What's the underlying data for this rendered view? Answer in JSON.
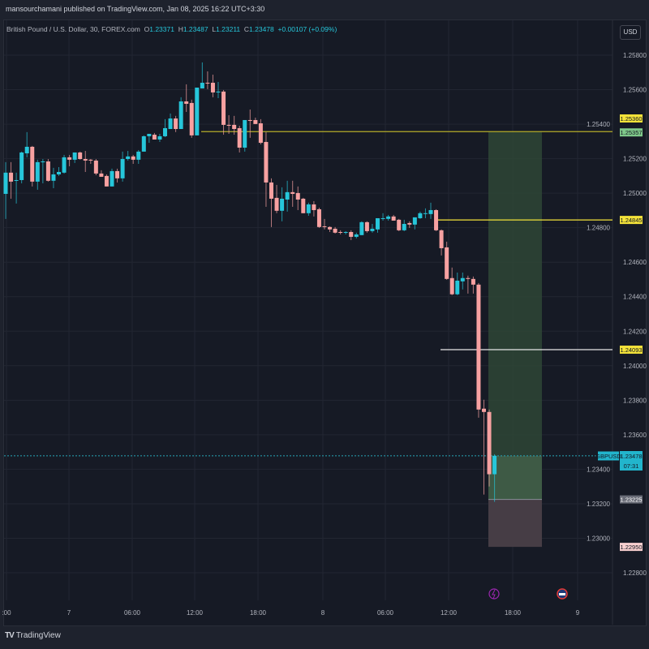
{
  "published_by": "mansourchamani published on TradingView.com, Jan 08, 2025 16:22 UTC+3:30",
  "symbol_title": "British Pound / U.S. Dollar, 30, FOREX.com",
  "ohlc": {
    "o_label": "O",
    "o": "1.23371",
    "h_label": "H",
    "h": "1.23487",
    "l_label": "L",
    "l": "1.23211",
    "c_label": "C",
    "c": "1.23478",
    "change": "+0.00107 (+0.09%)"
  },
  "currency_button": "USD",
  "footer_brand": "TradingView",
  "colors": {
    "up": "#26c6da",
    "down": "#f7a1a1",
    "bg": "#161a25",
    "grid": "#222632",
    "yellow": "#f3e23a",
    "profit": "#2e4636",
    "loss": "#463d45"
  },
  "chart_data": {
    "type": "candlestick",
    "ylim": [
      1.2272,
      1.2591
    ],
    "price_ticks": [
      "1.25800",
      "1.25600",
      "1.25400",
      "1.25200",
      "1.25000",
      "1.24800",
      "1.24600",
      "1.24400",
      "1.24200",
      "1.24000",
      "1.23800",
      "1.23600",
      "1.23400",
      "1.23200",
      "1.23000",
      "1.22800"
    ],
    "time_ticks": [
      ":00",
      "7",
      "06:00",
      "12:00",
      "18:00",
      "8",
      "06:00",
      "12:00",
      "18:00",
      "9"
    ],
    "candles": [
      [
        1.24996,
        1.2518,
        1.24851,
        1.25119
      ],
      [
        1.25119,
        1.2518,
        1.24968,
        1.25067
      ],
      [
        1.25072,
        1.25119,
        1.2494,
        1.25076
      ],
      [
        1.25076,
        1.25241,
        1.25057,
        1.25236
      ],
      [
        1.25231,
        1.25354,
        1.25208,
        1.25269
      ],
      [
        1.25269,
        1.25274,
        1.25039,
        1.25067
      ],
      [
        1.25067,
        1.25194,
        1.2502,
        1.2518
      ],
      [
        1.2518,
        1.25198,
        1.25057,
        1.25184
      ],
      [
        1.25184,
        1.25198,
        1.25067,
        1.25072
      ],
      [
        1.25072,
        1.25147,
        1.25029,
        1.25109
      ],
      [
        1.25109,
        1.25151,
        1.251,
        1.25123
      ],
      [
        1.25119,
        1.25222,
        1.25114,
        1.25208
      ],
      [
        1.25208,
        1.25222,
        1.25156,
        1.25194
      ],
      [
        1.25194,
        1.25236,
        1.25175,
        1.25236
      ],
      [
        1.25236,
        1.25241,
        1.25194,
        1.25198
      ],
      [
        1.25198,
        1.25245,
        1.25123,
        1.25189
      ],
      [
        1.25194,
        1.25198,
        1.2517,
        1.25189
      ],
      [
        1.25189,
        1.25198,
        1.25104,
        1.25114
      ],
      [
        1.25114,
        1.25133,
        1.25095,
        1.25095
      ],
      [
        1.251,
        1.25109,
        1.25039,
        1.25039
      ],
      [
        1.25039,
        1.25142,
        1.25039,
        1.25128
      ],
      [
        1.25128,
        1.25142,
        1.25062,
        1.25086
      ],
      [
        1.25086,
        1.25241,
        1.25067,
        1.25198
      ],
      [
        1.25198,
        1.25245,
        1.25189,
        1.25213
      ],
      [
        1.25213,
        1.25222,
        1.2517,
        1.25194
      ],
      [
        1.25194,
        1.2525,
        1.2517,
        1.25241
      ],
      [
        1.25241,
        1.25335,
        1.25241,
        1.2533
      ],
      [
        1.2533,
        1.25344,
        1.25292,
        1.25344
      ],
      [
        1.25339,
        1.25349,
        1.25311,
        1.25311
      ],
      [
        1.25311,
        1.25344,
        1.25297,
        1.2533
      ],
      [
        1.2533,
        1.25429,
        1.25325,
        1.25377
      ],
      [
        1.25372,
        1.25462,
        1.25372,
        1.25433
      ],
      [
        1.25433,
        1.25448,
        1.25354,
        1.25372
      ],
      [
        1.25372,
        1.25556,
        1.25372,
        1.25532
      ],
      [
        1.25532,
        1.25631,
        1.25471,
        1.25518
      ],
      [
        1.25523,
        1.25542,
        1.25321,
        1.25335
      ],
      [
        1.25335,
        1.25603,
        1.25335,
        1.25612
      ],
      [
        1.25607,
        1.25758,
        1.25607,
        1.2564
      ],
      [
        1.2564,
        1.25706,
        1.25603,
        1.25636
      ],
      [
        1.2564,
        1.25687,
        1.25556,
        1.25584
      ],
      [
        1.25584,
        1.25645,
        1.25551,
        1.25589
      ],
      [
        1.25589,
        1.25598,
        1.25339,
        1.25396
      ],
      [
        1.25396,
        1.25452,
        1.25344,
        1.25391
      ],
      [
        1.25396,
        1.25448,
        1.25339,
        1.25372
      ],
      [
        1.25377,
        1.25391,
        1.25236,
        1.25264
      ],
      [
        1.25264,
        1.25405,
        1.25241,
        1.25424
      ],
      [
        1.25424,
        1.25485,
        1.25321,
        1.25419
      ],
      [
        1.25424,
        1.25438,
        1.25401,
        1.25401
      ],
      [
        1.25405,
        1.25429,
        1.25283,
        1.25292
      ],
      [
        1.25297,
        1.25354,
        1.24921,
        1.25062
      ],
      [
        1.25062,
        1.25086,
        1.24804,
        1.24968
      ],
      [
        1.24973,
        1.25048,
        1.24884,
        1.24898
      ],
      [
        1.24898,
        1.25034,
        1.24837,
        1.24968
      ],
      [
        1.24963,
        1.25072,
        1.24893,
        1.25006
      ],
      [
        1.25006,
        1.25072,
        1.24921,
        1.24996
      ],
      [
        1.25001,
        1.25039,
        1.24902,
        1.24963
      ],
      [
        1.24968,
        1.24973,
        1.24884,
        1.24884
      ],
      [
        1.24884,
        1.24945,
        1.24869,
        1.24935
      ],
      [
        1.24935,
        1.24954,
        1.24865,
        1.24902
      ],
      [
        1.24907,
        1.24916,
        1.24799,
        1.24804
      ],
      [
        1.24808,
        1.24851,
        1.2479,
        1.24804
      ],
      [
        1.24804,
        1.24808,
        1.24775,
        1.2479
      ],
      [
        1.24794,
        1.24804,
        1.24766,
        1.24771
      ],
      [
        1.24775,
        1.24785,
        1.24761,
        1.24771
      ],
      [
        1.24771,
        1.2478,
        1.24761,
        1.24775
      ],
      [
        1.24775,
        1.24785,
        1.24728,
        1.24747
      ],
      [
        1.24747,
        1.24771,
        1.24738,
        1.24761
      ],
      [
        1.24757,
        1.24837,
        1.24757,
        1.24832
      ],
      [
        1.24832,
        1.24837,
        1.24771,
        1.2478
      ],
      [
        1.2478,
        1.24822,
        1.24771,
        1.24794
      ],
      [
        1.2479,
        1.24855,
        1.24771,
        1.24855
      ],
      [
        1.24851,
        1.24884,
        1.24841,
        1.24855
      ],
      [
        1.24851,
        1.24874,
        1.24841,
        1.24865
      ],
      [
        1.24865,
        1.24874,
        1.24841,
        1.24841
      ],
      [
        1.24846,
        1.24851,
        1.2478,
        1.24785
      ],
      [
        1.24785,
        1.24846,
        1.2478,
        1.24822
      ],
      [
        1.24827,
        1.24837,
        1.24799,
        1.24818
      ],
      [
        1.24818,
        1.2486,
        1.2479,
        1.2486
      ],
      [
        1.24855,
        1.24893,
        1.24851,
        1.24884
      ],
      [
        1.24884,
        1.24912,
        1.24855,
        1.24884
      ],
      [
        1.24879,
        1.24945,
        1.24851,
        1.24902
      ],
      [
        1.24902,
        1.24907,
        1.2478,
        1.24785
      ],
      [
        1.24785,
        1.2479,
        1.24639,
        1.24681
      ],
      [
        1.24686,
        1.24719,
        1.24498,
        1.24503
      ],
      [
        1.24508,
        1.24569,
        1.24409,
        1.24414
      ],
      [
        1.24414,
        1.2454,
        1.24409,
        1.24493
      ],
      [
        1.24489,
        1.2454,
        1.24442,
        1.24508
      ],
      [
        1.24508,
        1.24522,
        1.24418,
        1.24503
      ],
      [
        1.24503,
        1.24517,
        1.24418,
        1.2447
      ],
      [
        1.2447,
        1.24479,
        1.23699,
        1.23746
      ],
      [
        1.23751,
        1.23803,
        1.23253,
        1.23732
      ],
      [
        1.23732,
        1.23746,
        1.233,
        1.23371
      ],
      [
        1.23371,
        1.23487,
        1.23211,
        1.23478
      ]
    ],
    "levels": [
      {
        "price": 1.25357,
        "label": "1.25357",
        "color": "#b5ad2a",
        "badge_bg": "#7fc98a"
      },
      {
        "price": 1.24845,
        "label": "1.24845",
        "color": "#f3e23a",
        "badge_bg": "#f3e23a"
      },
      {
        "price": 1.24093,
        "label": "1.24093",
        "color": "#e8e8e8",
        "badge_bg": "#f3e23a"
      }
    ],
    "alert_label": "1.25360",
    "position": {
      "entry": 1.23225,
      "target": 1.25357,
      "stop": 1.2295,
      "entry_label": "1.23225",
      "stop_label": "1.22950"
    },
    "last": {
      "symbol": "GBPUSD",
      "price": "1.23478",
      "price_value": 1.23478,
      "countdown": "07:31"
    }
  }
}
